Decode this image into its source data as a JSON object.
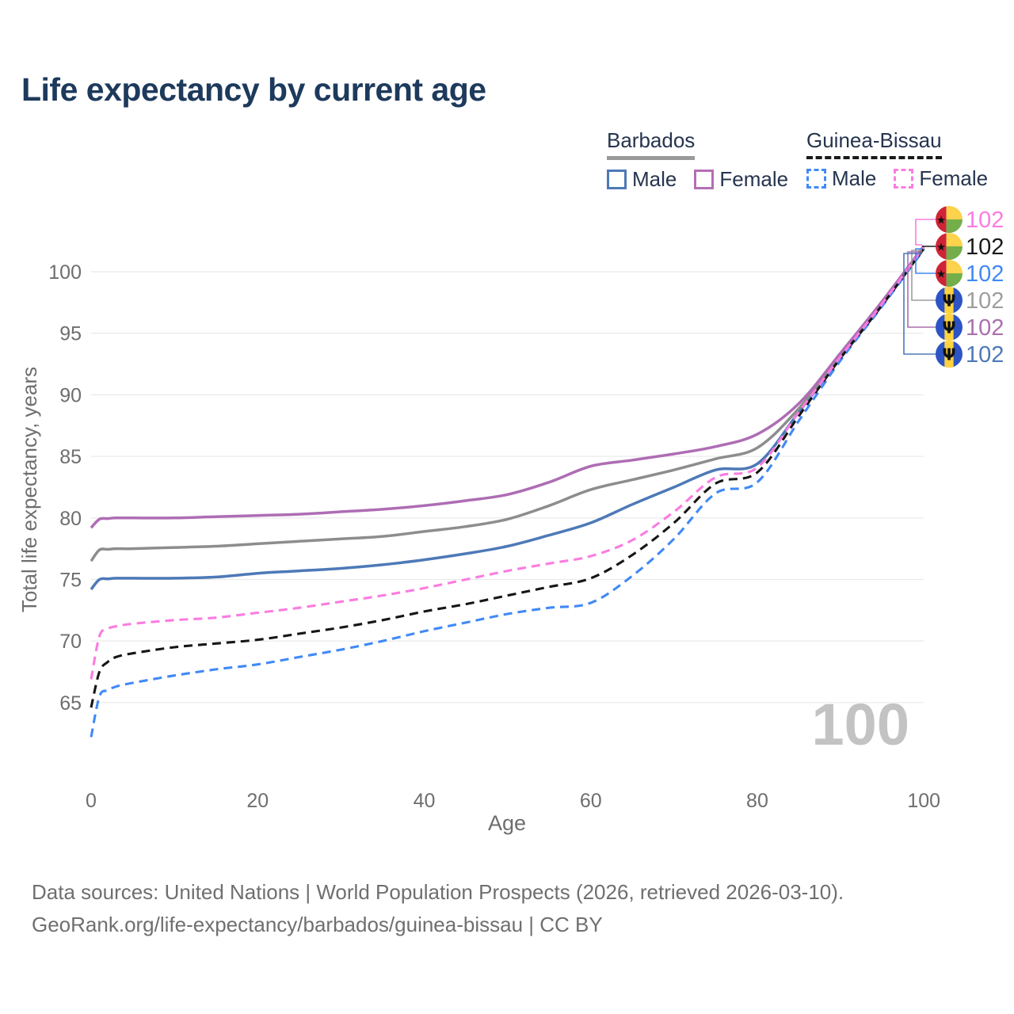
{
  "title": "Life expectancy by current age",
  "legend": {
    "groups": [
      {
        "label": "Barbados",
        "line_style": "solid",
        "line_color": "#999999",
        "items": [
          {
            "label": "Male",
            "color": "#4d79b7"
          },
          {
            "label": "Female",
            "color": "#b46eb4"
          }
        ]
      },
      {
        "label": "Guinea-Bissau",
        "line_style": "dashed",
        "line_color": "#1a1a1a",
        "items": [
          {
            "label": "Male",
            "color": "#4189f6"
          },
          {
            "label": "Female",
            "color": "#fb7ce0"
          }
        ]
      }
    ]
  },
  "chart_data": {
    "type": "line",
    "title": "Life expectancy by current age",
    "xlabel": "Age",
    "ylabel": "Total life expectancy, years",
    "xticks": [
      0,
      20,
      40,
      60,
      80,
      100
    ],
    "yticks": [
      65,
      70,
      75,
      80,
      85,
      90,
      95,
      100
    ],
    "xlim": [
      0,
      100
    ],
    "ylim": [
      61.5,
      103
    ],
    "grid": "horizontal",
    "legend_position": "top-right",
    "x": [
      0,
      1,
      2,
      3,
      5,
      10,
      15,
      20,
      25,
      30,
      35,
      40,
      45,
      50,
      55,
      60,
      65,
      70,
      75,
      80,
      85,
      90,
      95,
      100
    ],
    "series": [
      {
        "name": "Barbados Male",
        "country": "Barbados",
        "sex": "Male",
        "color": "#4d79b7",
        "dashed": false,
        "values": [
          74.2,
          75.0,
          75.05,
          75.1,
          75.1,
          75.1,
          75.2,
          75.5,
          75.7,
          75.9,
          76.2,
          76.6,
          77.1,
          77.7,
          78.6,
          79.6,
          81.1,
          82.5,
          83.9,
          84.4,
          88.6,
          93.0,
          97.3,
          101.9
        ]
      },
      {
        "name": "Barbados Both sexes",
        "country": "Barbados",
        "sex": "Both",
        "color": "#8d8d8d",
        "dashed": false,
        "values": [
          76.5,
          77.4,
          77.45,
          77.5,
          77.5,
          77.6,
          77.7,
          77.9,
          78.1,
          78.3,
          78.5,
          78.9,
          79.3,
          79.9,
          81.0,
          82.3,
          83.1,
          83.9,
          84.8,
          85.7,
          88.9,
          93.2,
          97.4,
          102.0
        ]
      },
      {
        "name": "Barbados Female",
        "country": "Barbados",
        "sex": "Female",
        "color": "#ae6db4",
        "dashed": false,
        "values": [
          79.2,
          79.9,
          79.95,
          80.0,
          80.0,
          80.0,
          80.1,
          80.2,
          80.3,
          80.5,
          80.7,
          81.0,
          81.4,
          81.9,
          82.9,
          84.2,
          84.7,
          85.2,
          85.8,
          86.8,
          89.3,
          93.4,
          97.6,
          102.1
        ]
      },
      {
        "name": "Guinea-Bissau Male",
        "country": "Guinea-Bissau",
        "sex": "Male",
        "color": "#4189f6",
        "dashed": true,
        "values": [
          62.2,
          65.5,
          66.0,
          66.3,
          66.6,
          67.2,
          67.7,
          68.1,
          68.7,
          69.3,
          70.0,
          70.8,
          71.5,
          72.2,
          72.7,
          73.1,
          75.3,
          78.3,
          82.0,
          82.9,
          87.9,
          92.8,
          97.2,
          101.8
        ]
      },
      {
        "name": "Guinea-Bissau Both sexes",
        "country": "Guinea-Bissau",
        "sex": "Both",
        "color": "#161616",
        "dashed": true,
        "values": [
          64.6,
          67.5,
          68.3,
          68.7,
          69.0,
          69.5,
          69.8,
          70.1,
          70.6,
          71.1,
          71.7,
          72.4,
          73.0,
          73.7,
          74.4,
          75.1,
          77.0,
          79.6,
          82.8,
          83.7,
          88.3,
          93.0,
          97.3,
          101.9
        ]
      },
      {
        "name": "Guinea-Bissau Female",
        "country": "Guinea-Bissau",
        "sex": "Female",
        "color": "#fb7ce0",
        "dashed": true,
        "values": [
          66.9,
          70.4,
          71.0,
          71.2,
          71.4,
          71.7,
          71.9,
          72.3,
          72.7,
          73.2,
          73.7,
          74.3,
          75.0,
          75.7,
          76.3,
          76.9,
          78.2,
          80.5,
          83.3,
          84.1,
          88.6,
          93.1,
          97.4,
          102.0
        ]
      }
    ]
  },
  "end_labels": [
    {
      "flag": "guinea-bissau",
      "series": "Guinea-Bissau Female",
      "value": "102",
      "color": "#fb7ce0"
    },
    {
      "flag": "guinea-bissau",
      "series": "Guinea-Bissau Both sexes",
      "value": "102",
      "color": "#1a1a1a"
    },
    {
      "flag": "guinea-bissau",
      "series": "Guinea-Bissau Male",
      "value": "102",
      "color": "#4189f6"
    },
    {
      "flag": "barbados",
      "series": "Barbados Both sexes",
      "value": "102",
      "color": "#9e9e9e"
    },
    {
      "flag": "barbados",
      "series": "Barbados Female",
      "value": "102",
      "color": "#aa70ae"
    },
    {
      "flag": "barbados",
      "series": "Barbados Male",
      "value": "102",
      "color": "#4d79b7"
    }
  ],
  "age_counter": "100",
  "footer": {
    "line1": "Data sources: United Nations | World Population Prospects (2026, retrieved 2026-03-10).",
    "line2": "GeoRank.org/life-expectancy/barbados/guinea-bissau | CC BY"
  }
}
